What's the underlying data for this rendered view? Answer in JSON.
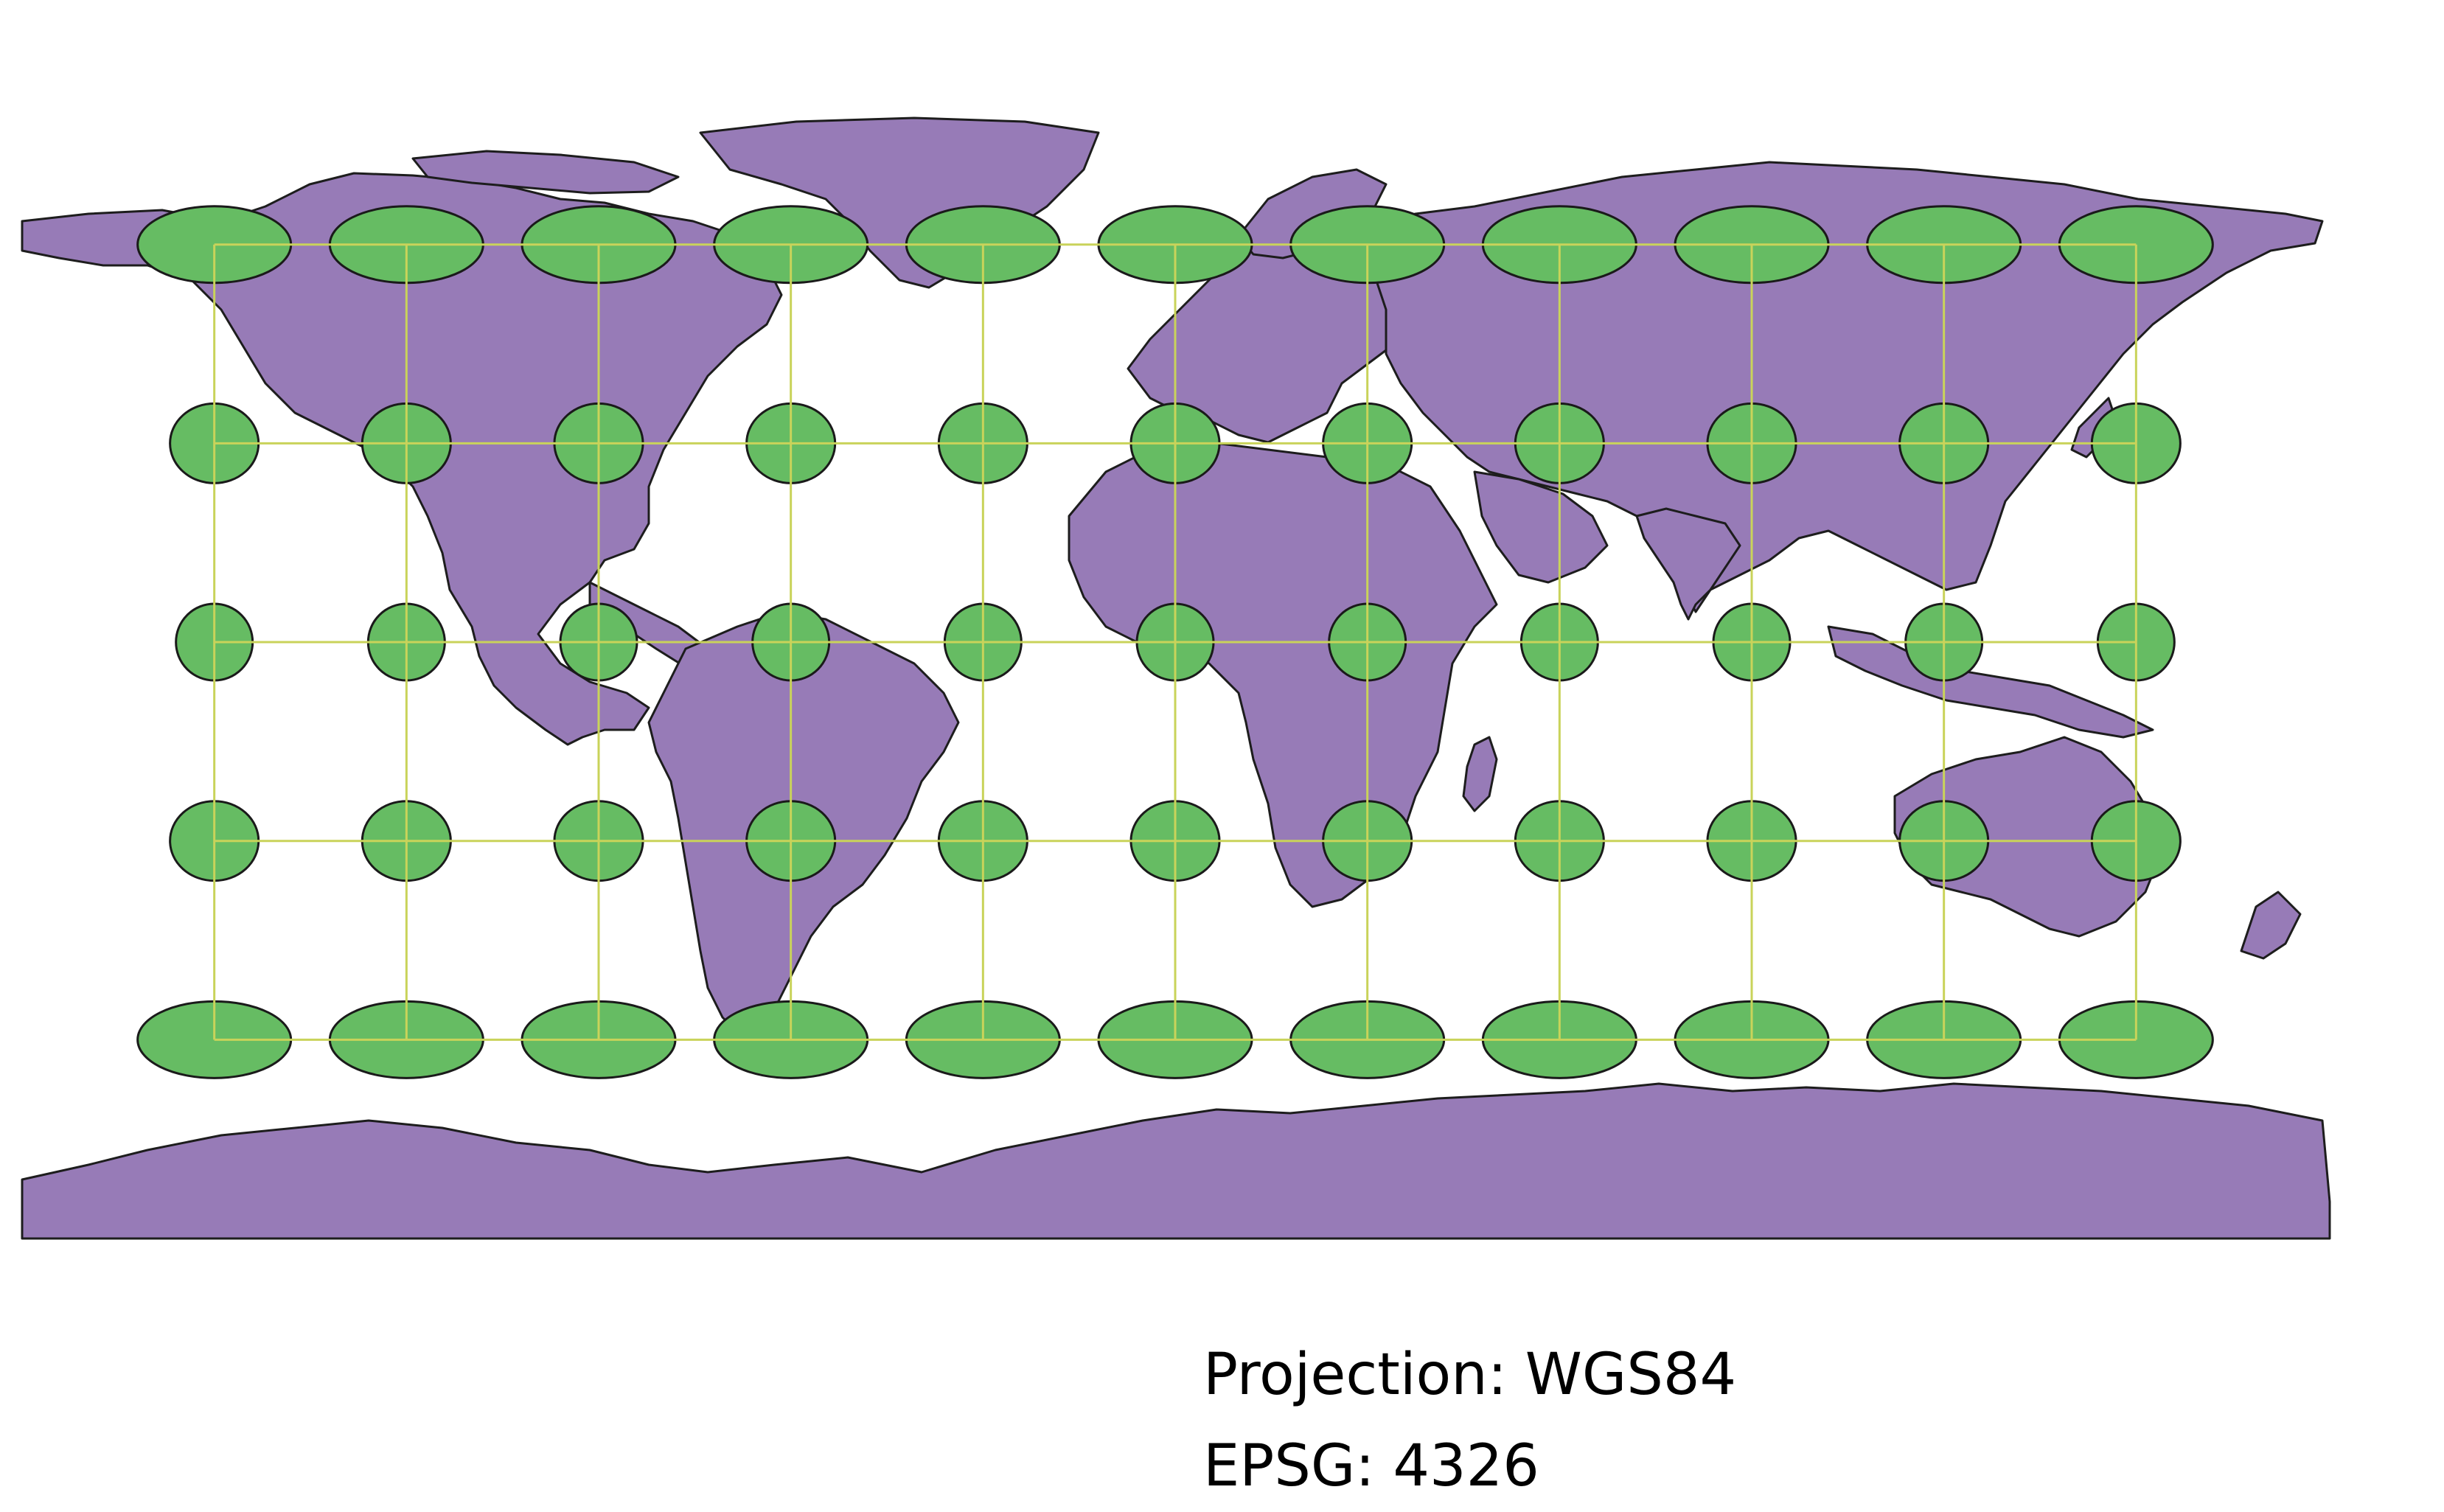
{
  "map": {
    "projection_label": "Projection: WGS84",
    "epsg_label": "EPSG: 4326",
    "land_color": "#977bb7",
    "outline_color": "#1d1d1d",
    "ocean_color": "#ffffff",
    "indicatrix_color": "#66bc63",
    "graticule_color": "#c9d35a",
    "graticule": {
      "longitudes": [
        -150,
        -120,
        -90,
        -60,
        -30,
        0,
        30,
        60,
        90,
        120,
        150
      ],
      "latitudes": [
        60,
        30,
        0,
        -30,
        -60
      ]
    }
  }
}
